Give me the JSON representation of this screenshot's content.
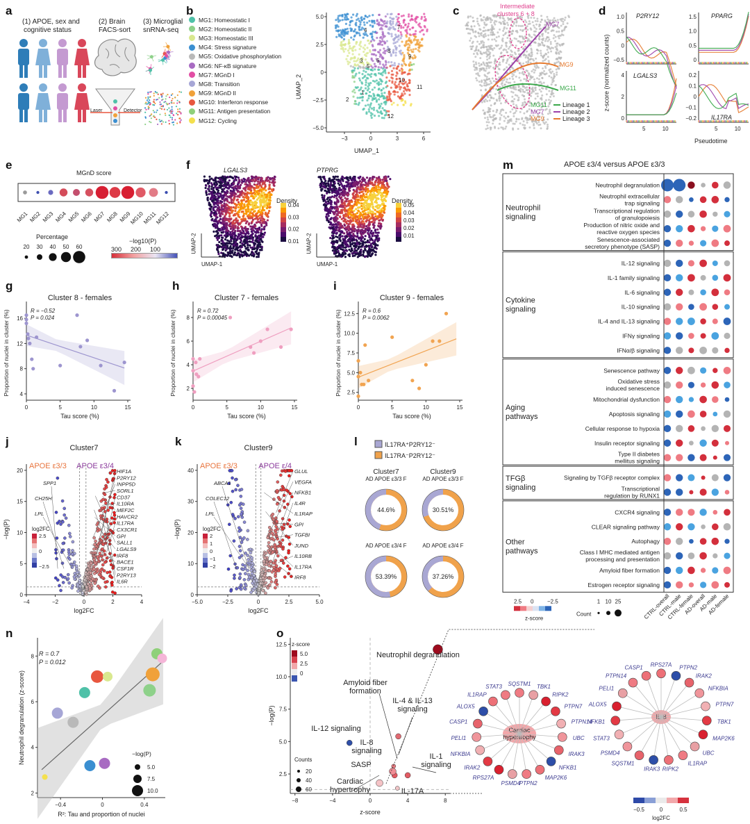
{
  "panels": {
    "a": "a",
    "b": "b",
    "c": "c",
    "d": "d",
    "e": "e",
    "f": "f",
    "g": "g",
    "h": "h",
    "i": "i",
    "j": "j",
    "k": "k",
    "l": "l",
    "m": "m",
    "n": "n",
    "o": "o"
  },
  "a": {
    "step1": "(1) APOE, sex and",
    "step1b": "cognitive status",
    "step2": "(2) Brain",
    "step2b": "FACS-sort",
    "step3": "(3) Microglial",
    "step3b": "snRNA-seq",
    "laser": "Laser",
    "detector": "Detector"
  },
  "b": {
    "legend": [
      {
        "label": "MG1: Homeostatic I",
        "color": "#4fc1a8"
      },
      {
        "label": "MG2: Homeostatic II",
        "color": "#8ed18a"
      },
      {
        "label": "MG3: Homeostatic III",
        "color": "#d9e88f"
      },
      {
        "label": "MG4: Stress signature",
        "color": "#3b8fd1"
      },
      {
        "label": "MG5: Oxidative phosphorylation",
        "color": "#b9b9b9"
      },
      {
        "label": "MG6: NF-κB signature",
        "color": "#a86bc2"
      },
      {
        "label": "MG7: MGnD I",
        "color": "#e24ea4"
      },
      {
        "label": "MG8: Transition",
        "color": "#a6a6d6"
      },
      {
        "label": "MG9: MGnD II",
        "color": "#f0a13a"
      },
      {
        "label": "MG10: Interferon response",
        "color": "#e8573f"
      },
      {
        "label": "MG11: Antigen presentation",
        "color": "#8fd07a"
      },
      {
        "label": "MG12: Cycling",
        "color": "#f4e04d"
      }
    ],
    "xlabel": "UMAP_1",
    "ylabel": "UMAP_2",
    "xticks": [
      "−3",
      "0",
      "3",
      "6"
    ],
    "yticks": [
      "5.0",
      "2.5",
      "0",
      "−2.5",
      "−5.0"
    ],
    "clusters": [
      "1",
      "2",
      "3",
      "4",
      "5",
      "6",
      "7",
      "8",
      "9",
      "10",
      "11",
      "12"
    ]
  },
  "c": {
    "note1": "Intermediate",
    "note2": "clusters 6 + 8",
    "mg7": "MG7",
    "mg9": "MG9",
    "mg11": "MG11",
    "lineages": [
      {
        "mg": "MG11",
        "label": "Lineage 1",
        "color": "#3aa84a"
      },
      {
        "mg": "MG7",
        "label": "Lineage 2",
        "color": "#9b3fa8"
      },
      {
        "mg": "MG9",
        "label": "Lineage 3",
        "color": "#e67a2e"
      }
    ]
  },
  "d": {
    "genes": [
      "P2RY12",
      "PPARG",
      "LGALS3",
      "IL17RA"
    ],
    "ylabel": "z-score (normalized counts)",
    "xlabel": "Pseudotime",
    "yt1": [
      "1.0",
      "0.5",
      "0",
      "−0.5"
    ],
    "yt2": [
      "1.5",
      "1.0",
      "0.5",
      "0"
    ],
    "yt3": [
      "4",
      "2",
      "0"
    ],
    "yt4": [
      "0.2",
      "0.1",
      "0",
      "−0.1",
      "−0.2"
    ],
    "xt": [
      "5",
      "10"
    ]
  },
  "e": {
    "title": "MGnD score",
    "cats": [
      "MG1",
      "MG2",
      "MG3",
      "MG4",
      "MG5",
      "MG6",
      "MG7",
      "MG8",
      "MG9",
      "MG10",
      "MG11",
      "MG12"
    ],
    "sizes": [
      4,
      3,
      5,
      8,
      7,
      8,
      13,
      11,
      13,
      10,
      9,
      3
    ],
    "colors": [
      "#9a9a9a",
      "#3e4fb0",
      "#6a6ac0",
      "#d44c5a",
      "#c44f6e",
      "#d6505f",
      "#d71f33",
      "#dd3a46",
      "#d81e31",
      "#e05a66",
      "#e27b86",
      "#3a4db0"
    ],
    "perc_label": "Percentage",
    "perc": [
      "20",
      "30",
      "40",
      "50",
      "60"
    ],
    "logp_label": "−log10(P)",
    "logp": [
      "300",
      "200",
      "100"
    ]
  },
  "f": {
    "genes": [
      "LGALS3",
      "PTPRG"
    ],
    "density": "Density",
    "d1": [
      "0.04",
      "0.03",
      "0.02",
      "0.01"
    ],
    "d2": [
      "0.05",
      "0.04",
      "0.03",
      "0.02",
      "0.01"
    ],
    "ux": "UMAP-1",
    "uy": "UMAP-2"
  },
  "g": {
    "title": "Cluster 8 - females",
    "r": "R = −0.52",
    "p": "P = 0.024",
    "ylabel": "Proportion of nuclei in cluster (%)",
    "xlabel": "Tau score (%)",
    "xt": [
      "0",
      "5",
      "10",
      "15"
    ],
    "yt": [
      "16",
      "12",
      "8",
      "4"
    ],
    "chart_data": {
      "type": "scatter",
      "x": [
        0,
        0,
        0,
        0.2,
        0.3,
        0.5,
        0.8,
        1,
        1.5,
        5,
        7.5,
        8,
        9,
        11,
        13,
        14.5
      ],
      "y": [
        16.5,
        15.8,
        15.2,
        13.5,
        12.8,
        12,
        9.5,
        8,
        13,
        8.5,
        16.5,
        11.5,
        12.5,
        8.5,
        4.5,
        9
      ]
    }
  },
  "h": {
    "title": "Cluster 7 - females",
    "r": "R = 0.72",
    "p": "P = 0.00045",
    "ylabel": "Proportion of nuclei in cluster (%)",
    "xlabel": "Tau score (%)",
    "xt": [
      "0",
      "5",
      "10",
      "15"
    ],
    "yt": [
      "8",
      "6",
      "4",
      "2"
    ],
    "chart_data": {
      "type": "scatter",
      "x": [
        0,
        0,
        0,
        0.2,
        0.4,
        0.5,
        0.8,
        1,
        5.5,
        8.5,
        9,
        10,
        11,
        13,
        14.5
      ],
      "y": [
        4.5,
        3.5,
        2.2,
        1.7,
        4.2,
        3.2,
        3,
        4.5,
        8,
        5.5,
        5,
        6,
        7,
        5.5,
        7
      ]
    }
  },
  "i": {
    "title": "Cluster 9 - females",
    "r": "R = 0.6",
    "p": "P = 0.0062",
    "ylabel": "Proportion of nuclei in cluster (%)",
    "xlabel": "Tau score (%)",
    "xt": [
      "0",
      "5",
      "10",
      "15"
    ],
    "yt": [
      "12.5",
      "10.0",
      "7.5",
      "5.0",
      "2.5"
    ],
    "chart_data": {
      "type": "scatter",
      "x": [
        0,
        0,
        0,
        0.3,
        0.5,
        0.8,
        1,
        1.5,
        5,
        8,
        9,
        10,
        11,
        12,
        13
      ],
      "y": [
        6.5,
        4.5,
        2,
        5,
        3.5,
        3.5,
        8.5,
        4,
        9.5,
        4,
        3,
        6,
        9,
        9,
        12.5
      ]
    }
  },
  "j": {
    "title": "Cluster7",
    "left": "APOE ε3/3",
    "right": "APOE ε3/4",
    "ylabel": "−log(P)",
    "xlabel": "log2FC",
    "xt": [
      "−4",
      "−2",
      "0",
      "2",
      "4"
    ],
    "yt": [
      "20",
      "15",
      "10",
      "5",
      "0"
    ],
    "lgenes": [
      "SPP1",
      "CH25H",
      "LPL"
    ],
    "rgenes": [
      "HIF1A",
      "P2RY12",
      "INPP5D",
      "SORL1",
      "CD37",
      "IL10RA",
      "MEF2C",
      "HAVCR2",
      "IL17RA",
      "CX3CR1",
      "GPI",
      "SALL1",
      "LGALS9",
      "IRF8",
      "BACE1",
      "CSF1R",
      "P2RY13",
      "IL6R"
    ],
    "cbar": "log2FC",
    "cb": [
      "2.5",
      "0",
      "−2.5"
    ]
  },
  "k": {
    "title": "Cluster9",
    "left": "APOE ε3/3",
    "right": "APOE ε/4",
    "ylabel": "−log(P)",
    "xlabel": "log2FC",
    "xt": [
      "−5.0",
      "−2.5",
      "0",
      "2.5",
      "5.0"
    ],
    "yt": [
      "40",
      "30",
      "20",
      "10",
      "0"
    ],
    "lgenes": [
      "ABCA1",
      "COLEC12",
      "LPL"
    ],
    "rgenes": [
      "GLUL",
      "VEGFA",
      "NFKB1",
      "IL4R",
      "IL1RAP",
      "GPI",
      "TGFBI",
      "JUND",
      "IL10RB",
      "IL17RA",
      "IRF8"
    ],
    "cbar": "log2FC",
    "cb": [
      "2",
      "1",
      "0",
      "−1",
      "−2"
    ]
  },
  "l": {
    "leg1": "IL17RA⁺P2RY12⁻",
    "leg2": "IL17RA⁻P2RY12⁻",
    "c7": "Cluster7",
    "c9": "Cluster9",
    "s1": "AD APOE ε3/3 F",
    "s2": "AD APOE ε3/3 F",
    "s3": "AD APOE ε3/4 F",
    "s4": "AD APOE ε3/4 F",
    "chart_data": {
      "type": "pie",
      "values": [
        44.6,
        30.51,
        53.39,
        37.26
      ],
      "labels": [
        "44.6%",
        "30.51%",
        "53.39%",
        "37.26%"
      ]
    }
  },
  "m": {
    "title": "APOE ε3/4 versus APOE ε3/3",
    "groups": [
      {
        "name": "Neutrophil signaling",
        "rows": [
          "Neutrophil degranulation",
          "Neutrophil extracellular trap signaling",
          "Transcriptional regulation of granulopoiesis",
          "Production of nitric oxide and reactive oxygen species",
          "Senescence-associated secretory phenotype (SASP)"
        ]
      },
      {
        "name": "Cytokine signaling",
        "rows": [
          "IL-12 signaling",
          "IL-1 family signaling",
          "IL-6 signaling",
          "IL-10 signaling",
          "IL-4 and IL-13 signaling",
          "IFNγ signaling",
          "IFNα/β signaling"
        ]
      },
      {
        "name": "Aging pathways",
        "rows": [
          "Senescence pathway",
          "Oxidative stress induced senescence",
          "Mitochondrial dysfunction",
          "Apoptosis signaling",
          "Cellular response to hypoxia",
          "Insulin receptor signaling",
          "Type II diabetes mellitus signaling"
        ]
      },
      {
        "name": "TFGβ signaling",
        "rows": [
          "Signaling by TGFβ receptor complex",
          "Transcriptional regulation by RUNX1"
        ]
      },
      {
        "name": "Other pathways",
        "rows": [
          "CXCR4 signaling",
          "CLEAR signaling pathway",
          "Autophagy",
          "Class I MHC mediated antigen processing and presentation",
          "Amyloid fiber formation",
          "Estrogen receptor signaling"
        ]
      }
    ],
    "cols": [
      "CTRL-overall",
      "CTRL-male",
      "CTRL-female",
      "AD-overall",
      "AD-male",
      "AD-female"
    ],
    "zlabel": "z-score",
    "zt": [
      "2.5",
      "0",
      "−2.5"
    ],
    "count": "Count",
    "ct": [
      "1",
      "10",
      "25"
    ]
  },
  "n": {
    "r": "R = 0.7",
    "p": "P = 0.012",
    "ylabel": "Neutrophil degranulation (z-score)",
    "xlabel": "R²: Tau and proportion of nuclei",
    "xt": [
      "−0.4",
      "0",
      "0.4"
    ],
    "yt": [
      "8",
      "6",
      "4",
      "2"
    ],
    "logp": "−log(P)",
    "lp": [
      "5.0",
      "7.5",
      "10.0"
    ],
    "chart_data": {
      "type": "scatter",
      "x": [
        -0.55,
        -0.43,
        -0.28,
        -0.17,
        -0.12,
        -0.05,
        0.02,
        0.05,
        0.45,
        0.48,
        0.52,
        0.57
      ],
      "y": [
        2.7,
        5.5,
        5.1,
        6.4,
        3.2,
        7.1,
        3.3,
        7.1,
        6.5,
        7.2,
        8.1,
        7.9
      ],
      "colors": [
        "#f4e04d",
        "#a6a6d6",
        "#b9b9b9",
        "#4fc1a8",
        "#3b8fd1",
        "#e8573f",
        "#a86bc2",
        "#d9e88f",
        "#8ed18a",
        "#f0a13a",
        "#8fd07a",
        "#f5b6d8"
      ]
    }
  },
  "o": {
    "xlabel": "z-score",
    "ylabel": "−log(P)",
    "xt": [
      "−8",
      "−4",
      "0",
      "4",
      "8"
    ],
    "yt": [
      "12.5",
      "10.0",
      "7.5",
      "5.0",
      "2.5"
    ],
    "zs": "z-score",
    "zt": [
      "5.0",
      "2.5",
      "0"
    ],
    "counts": "Counts",
    "cnt": [
      "20",
      "40",
      "60"
    ],
    "labels": [
      "Neutrophil degranulation",
      "Amyloid fiber formation",
      "IL-4 & IL-13 signaling",
      "IL-12 signaling",
      "IL-8 signaling",
      "SASP",
      "IL-1 signaling",
      "Cardiac hypertrophy",
      "IL-17A"
    ],
    "net1": {
      "center": "Cardiac hypertrophy",
      "genes": [
        "SQSTM1",
        "TBK1",
        "RIPK2",
        "PTPN7",
        "PTPN14",
        "UBC",
        "IRAK3",
        "NFKB1",
        "MAP2K6",
        "PTPN2",
        "PSMD4",
        "RPS27A",
        "IRAK2",
        "NFKBIA",
        "PELI1",
        "CASP1",
        "ALOX5",
        "IL1RAP",
        "STAT3"
      ]
    },
    "net2": {
      "center": "IL-8",
      "genes": [
        "RPS27A",
        "PTPN2",
        "IRAK2",
        "NFKBIA",
        "PTPN7",
        "TBK1",
        "MAP2K6",
        "UBC",
        "IL1RAP",
        "RIPK2",
        "IRAK3",
        "SQSTM1",
        "PSMD4",
        "STAT3",
        "NFKB1",
        "ALOX5",
        "PELI1",
        "PTPN14",
        "CASP1"
      ]
    },
    "lfc": "log2FC",
    "lt": [
      "−0.5",
      "0",
      "0.5"
    ]
  }
}
